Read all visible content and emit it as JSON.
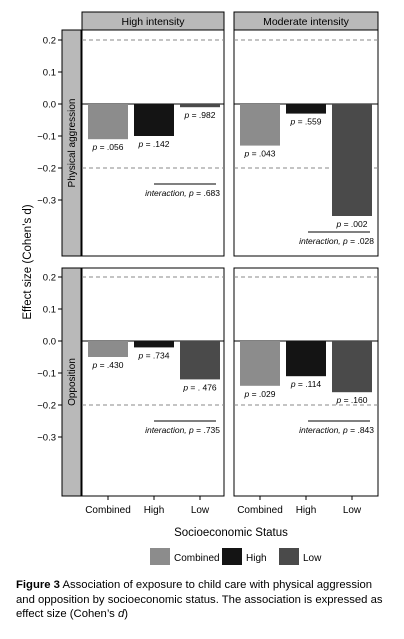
{
  "chart_data": {
    "type": "bar",
    "layout": "facet-grid-2x2",
    "column_facets": [
      "High intensity",
      "Moderate intensity"
    ],
    "row_facets": [
      "Physical aggression",
      "Opposition"
    ],
    "categories": [
      "Combined",
      "High",
      "Low"
    ],
    "ylabel": "Effect size (Cohen’s d)",
    "xlabel": "Socioeconomic Status",
    "ylim": [
      -0.4,
      0.23
    ],
    "yticks": [
      -0.3,
      -0.2,
      -0.1,
      0.0,
      0.1,
      0.2
    ],
    "ytick_labels": [
      "−0.3",
      "−0.2",
      "−0.1",
      "0.0",
      "0.1",
      "0.2"
    ],
    "reference_lines": [
      -0.2,
      0.2
    ],
    "legend": [
      "Combined",
      "High",
      "Low"
    ],
    "legend_position": "bottom",
    "colors": {
      "Combined": "#8c8c8c",
      "High": "#141414",
      "Low": "#4a4a4a"
    },
    "panels": [
      {
        "col": "High intensity",
        "row": "Physical aggression",
        "values": [
          -0.11,
          -0.1,
          -0.01
        ],
        "p_labels": [
          "p = .056",
          "p = .142",
          "p = .982"
        ],
        "interaction": "interaction, p = .683"
      },
      {
        "col": "Moderate intensity",
        "row": "Physical aggression",
        "values": [
          -0.13,
          -0.03,
          -0.35
        ],
        "p_labels": [
          "p = .043",
          "p = .559",
          "p = .002"
        ],
        "interaction": "interaction, p = .028"
      },
      {
        "col": "High intensity",
        "row": "Opposition",
        "values": [
          -0.05,
          -0.02,
          -0.12
        ],
        "p_labels": [
          "p = .430",
          "p = .734",
          "p = . 476"
        ],
        "interaction": "interaction, p = .735"
      },
      {
        "col": "Moderate intensity",
        "row": "Opposition",
        "values": [
          -0.14,
          -0.11,
          -0.16
        ],
        "p_labels": [
          "p = .029",
          "p = .114",
          "p = .160"
        ],
        "interaction": "interaction, p = .843"
      }
    ]
  },
  "caption": {
    "label": "Figure 3",
    "text_before": " Association of exposure to child care with physical aggression and opposition by socioeconomic status. The association is expressed as effect size (Cohen’s ",
    "variable": "d",
    "text_after": ")"
  }
}
